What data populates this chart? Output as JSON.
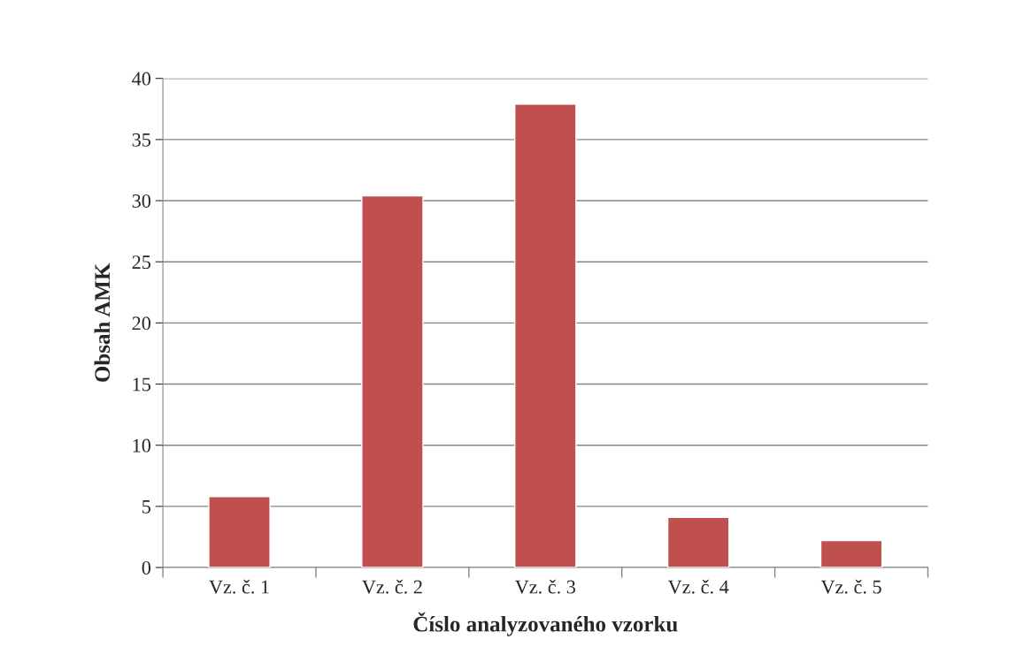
{
  "chart_data": {
    "type": "bar",
    "xlabel": "Číslo analyzovaného vzorku",
    "ylabel": "Obsah AMK",
    "categories": [
      "Vz. č. 1",
      "Vz. č. 2",
      "Vz. č. 3",
      "Vz. č. 4",
      "Vz. č. 5"
    ],
    "values": [
      5.8,
      30.4,
      37.9,
      4.1,
      2.2
    ],
    "color": "#c0504d",
    "ylim": [
      0,
      40
    ],
    "yticks": [
      0,
      5,
      10,
      15,
      20,
      25,
      30,
      35,
      40
    ],
    "grid": "y"
  }
}
